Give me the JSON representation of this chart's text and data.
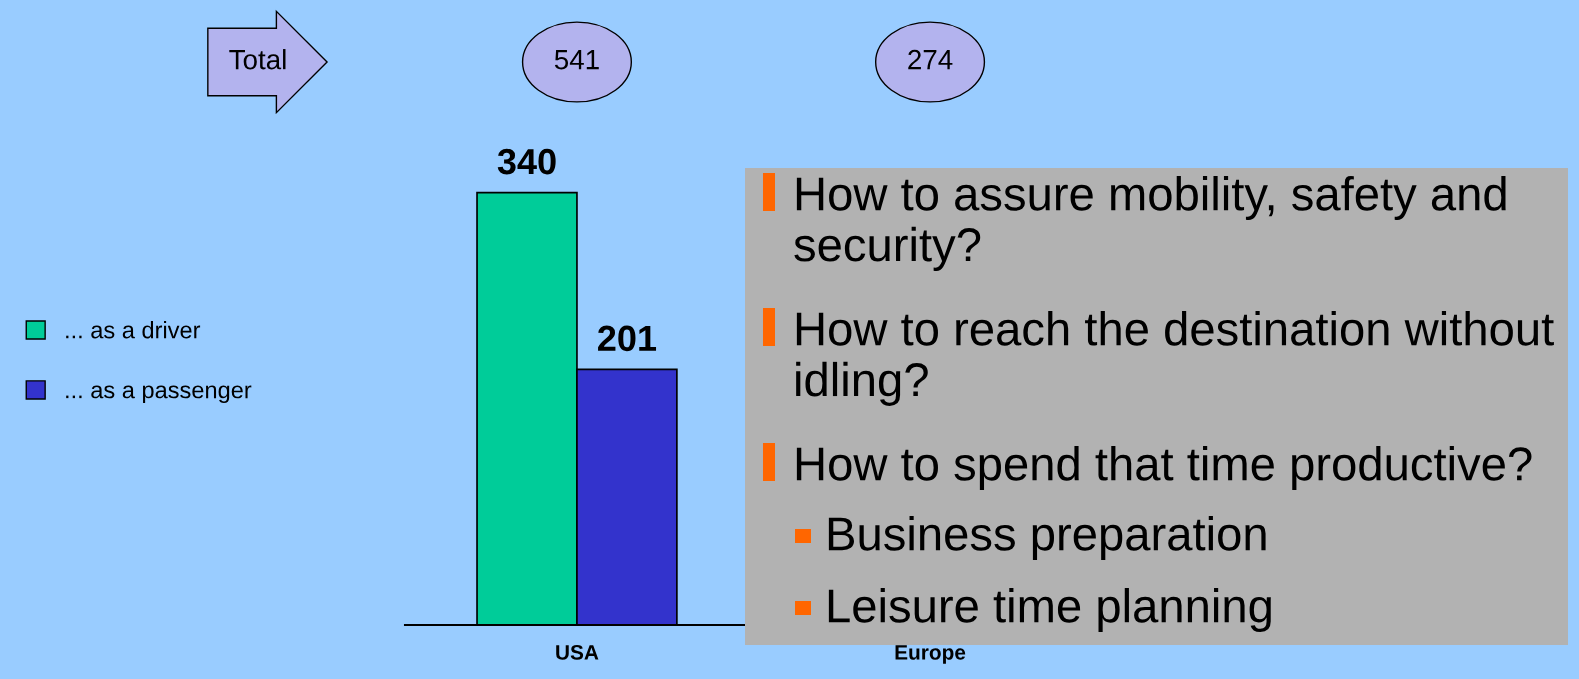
{
  "chart_data": {
    "type": "bar",
    "categories": [
      "USA",
      "Europe"
    ],
    "series": [
      {
        "name": "... as a driver",
        "color": "#00cc99",
        "values": [
          340,
          null
        ]
      },
      {
        "name": "... as a passenger",
        "color": "#3333cc",
        "values": [
          201,
          null
        ]
      }
    ],
    "data_labels": true,
    "legend": "left",
    "annotations": [
      "Total",
      "541",
      "274",
      "How to assure mobility, safety and security?",
      "How to reach the destination without idling?",
      "How to spend that time productive?",
      "Business preparation",
      "Leisure time planning"
    ]
  }
}
